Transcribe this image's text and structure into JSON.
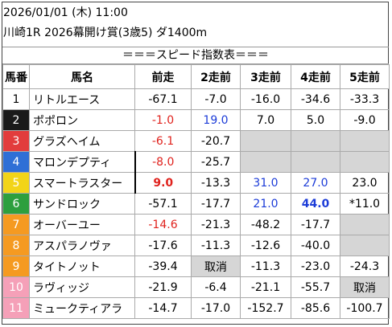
{
  "header": {
    "date_line": "2026/01/01 (木) 11:00",
    "race_line": "川崎1R 2026幕開け賞(3歳5) ダ1400m"
  },
  "table_title": "＝＝＝スピード指数表＝＝＝",
  "columns": [
    "馬番",
    "馬名",
    "前走",
    "2走前",
    "3走前",
    "4走前",
    "5走前"
  ],
  "colors": {
    "frame1": "#ffffff",
    "frame2": "#1a1a1a",
    "frame3": "#e23c3c",
    "frame4": "#2f6fd6",
    "frame5": "#f2d418",
    "frame6": "#2d9f3e",
    "frame7": "#f59a21",
    "frame8": "#f5a0b8",
    "highlight_red": "#e0221d",
    "highlight_blue": "#1c3cd8",
    "missing_bg": "#d6d6d6"
  },
  "rows": [
    {
      "num": "1",
      "name": "リトルエース",
      "runs": [
        "-67.1",
        "-7.0",
        "-16.0",
        "-34.6",
        "-33.3"
      ]
    },
    {
      "num": "2",
      "name": "ポポロン",
      "runs": [
        "-1.0",
        "19.0",
        "7.0",
        "5.0",
        "-9.0"
      ]
    },
    {
      "num": "3",
      "name": "グラズヘイム",
      "runs": [
        "-6.1",
        "-20.7",
        "",
        "",
        ""
      ]
    },
    {
      "num": "4",
      "name": "マロンデプティ",
      "runs": [
        "-8.0",
        "-25.7",
        "",
        "",
        ""
      ]
    },
    {
      "num": "5",
      "name": "スマートラスター",
      "runs": [
        "9.0",
        "-13.3",
        "31.0",
        "27.0",
        "23.0"
      ]
    },
    {
      "num": "6",
      "name": "サンドロック",
      "runs": [
        "-57.1",
        "-17.7",
        "21.0",
        "44.0",
        "*11.0"
      ]
    },
    {
      "num": "7",
      "name": "オーバーユー",
      "runs": [
        "-14.6",
        "-21.3",
        "-48.2",
        "-17.7",
        ""
      ]
    },
    {
      "num": "8",
      "name": "アスパラノヴァ",
      "runs": [
        "-17.6",
        "-11.3",
        "-12.6",
        "-40.0",
        ""
      ]
    },
    {
      "num": "9",
      "name": "タイトノット",
      "runs": [
        "-39.4",
        "取消",
        "-11.3",
        "-23.0",
        "-24.3"
      ]
    },
    {
      "num": "10",
      "name": "ラヴィッジ",
      "runs": [
        "-21.9",
        "-6.4",
        "-21.1",
        "-55.7",
        "取消"
      ]
    },
    {
      "num": "11",
      "name": "ミュークティアラ",
      "runs": [
        "-14.7",
        "-17.0",
        "-152.7",
        "-85.6",
        "-100.7"
      ]
    }
  ]
}
